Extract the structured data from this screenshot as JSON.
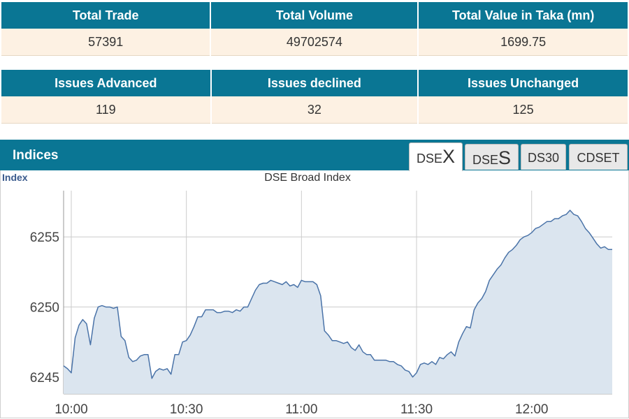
{
  "summary_1": {
    "headers": [
      "Total Trade",
      "Total Volume",
      "Total Value in Taka (mn)"
    ],
    "values": [
      "57391",
      "49702574",
      "1699.75"
    ]
  },
  "summary_2": {
    "headers": [
      "Issues Advanced",
      "Issues declined",
      "Issues Unchanged"
    ],
    "values": [
      "119",
      "32",
      "125"
    ]
  },
  "indices": {
    "title": "Indices",
    "tabs": [
      {
        "prefix": "DSE",
        "suffix": "X"
      },
      {
        "prefix": "DSE",
        "suffix": "S"
      },
      {
        "prefix": "DS30",
        "suffix": ""
      },
      {
        "prefix": "CDSET",
        "suffix": ""
      }
    ]
  },
  "colors": {
    "header": "#0a7694",
    "row": "#fdf1e3",
    "line": "#4a73a8",
    "fill": "#dbe5ef"
  },
  "chart_data": {
    "type": "area",
    "title": "DSE Broad Index",
    "ylabel": "Index",
    "xlabel": "",
    "ylim": [
      6243.8,
      6258.3
    ],
    "xlim": [
      -2,
      141
    ],
    "x_ticks": [
      {
        "label": "10:00",
        "minute": 0
      },
      {
        "label": "10:30",
        "minute": 30
      },
      {
        "label": "11:00",
        "minute": 60
      },
      {
        "label": "11:30",
        "minute": 90
      },
      {
        "label": "12:00",
        "minute": 120
      }
    ],
    "y_ticks": [
      6245,
      6250,
      6255
    ],
    "grid": true,
    "series": [
      {
        "x": [
          -2,
          -1,
          0,
          1,
          2,
          3,
          4,
          5,
          6,
          7,
          8,
          9,
          10,
          11,
          12,
          13,
          14,
          15,
          16,
          17,
          18,
          19,
          20,
          21,
          22,
          23,
          24,
          25,
          26,
          27,
          28,
          29,
          30,
          31,
          32,
          33,
          34,
          35,
          36,
          37,
          38,
          39,
          40,
          41,
          42,
          43,
          44,
          45,
          46,
          47,
          48,
          49,
          50,
          51,
          52,
          53,
          54,
          55,
          56,
          57,
          58,
          59,
          60,
          61,
          62,
          63,
          64,
          65,
          66,
          67,
          68,
          69,
          70,
          71,
          72,
          73,
          74,
          75,
          76,
          77,
          78,
          79,
          80,
          81,
          82,
          83,
          84,
          85,
          86,
          87,
          88,
          89,
          90,
          91,
          92,
          93,
          94,
          95,
          96,
          97,
          98,
          99,
          100,
          101,
          102,
          103,
          104,
          105,
          106,
          107,
          108,
          109,
          110,
          111,
          112,
          113,
          114,
          115,
          116,
          117,
          118,
          119,
          120,
          121,
          122,
          123,
          124,
          125,
          126,
          127,
          128,
          129,
          130,
          131,
          132,
          133,
          134,
          135,
          136,
          137,
          138,
          139,
          140,
          141
        ],
        "y": [
          6245.8,
          6245.6,
          6245.3,
          6247.8,
          6248.7,
          6249.1,
          6248.8,
          6247.3,
          6249.2,
          6250.0,
          6250.1,
          6250.0,
          6250.0,
          6249.9,
          6250.0,
          6247.9,
          6247.6,
          6246.4,
          6246.1,
          6246.2,
          6246.5,
          6246.6,
          6246.6,
          6244.9,
          6245.4,
          6245.6,
          6245.5,
          6245.6,
          6245.2,
          6246.6,
          6246.6,
          6247.5,
          6247.6,
          6248.0,
          6248.6,
          6249.3,
          6249.3,
          6249.8,
          6249.8,
          6249.8,
          6249.6,
          6249.6,
          6249.7,
          6249.7,
          6249.6,
          6249.8,
          6249.7,
          6250.0,
          6250.0,
          6250.6,
          6251.2,
          6251.6,
          6251.7,
          6251.7,
          6251.9,
          6251.8,
          6251.7,
          6251.6,
          6251.8,
          6251.5,
          6251.6,
          6251.4,
          6251.9,
          6251.8,
          6251.8,
          6251.8,
          6251.6,
          6250.8,
          6248.3,
          6248.0,
          6247.6,
          6247.6,
          6247.5,
          6247.4,
          6247.5,
          6247.1,
          6246.9,
          6247.3,
          6246.8,
          6246.6,
          6246.6,
          6246.2,
          6246.2,
          6246.2,
          6246.2,
          6246.1,
          6246.1,
          6245.9,
          6245.8,
          6245.5,
          6245.4,
          6245.0,
          6245.3,
          6245.9,
          6246.0,
          6245.9,
          6246.1,
          6245.9,
          6246.4,
          6246.3,
          6246.6,
          6246.8,
          6246.5,
          6247.5,
          6248.1,
          6248.6,
          6248.5,
          6249.8,
          6250.3,
          6250.6,
          6251.1,
          6251.9,
          6252.3,
          6252.7,
          6253.0,
          6253.5,
          6253.9,
          6254.1,
          6254.4,
          6254.8,
          6255.0,
          6255.1,
          6255.3,
          6255.6,
          6255.7,
          6255.9,
          6256.1,
          6256.1,
          6256.3,
          6256.3,
          6256.5,
          6256.6,
          6256.9,
          6256.6,
          6256.5,
          6256.1,
          6255.6,
          6255.3,
          6254.9,
          6254.5,
          6254.2,
          6254.3,
          6254.1,
          6254.1
        ]
      }
    ]
  }
}
